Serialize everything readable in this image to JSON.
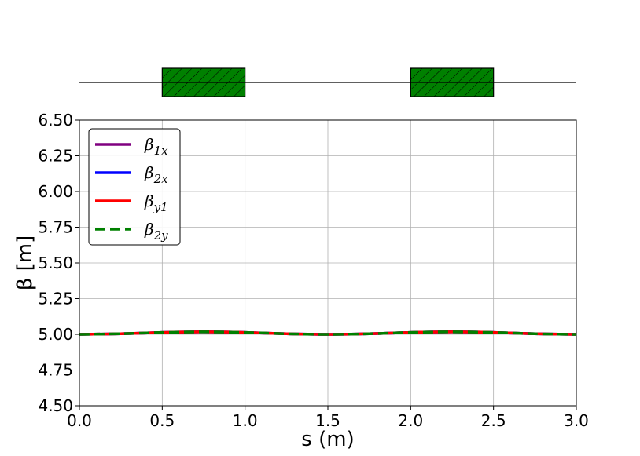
{
  "chart_data": {
    "type": "line",
    "xlabel": "s (m)",
    "ylabel": "β [m]",
    "xlim": [
      0.0,
      3.0
    ],
    "ylim": [
      4.5,
      6.5
    ],
    "x_ticks": [
      "0.0",
      "0.5",
      "1.0",
      "1.5",
      "2.0",
      "2.5",
      "3.0"
    ],
    "y_ticks": [
      "4.50",
      "4.75",
      "5.00",
      "5.25",
      "5.50",
      "5.75",
      "6.00",
      "6.25",
      "6.50"
    ],
    "grid": true,
    "legend_position": "upper-left",
    "x": [
      0.0,
      0.25,
      0.5,
      0.75,
      1.0,
      1.25,
      1.5,
      1.75,
      2.0,
      2.25,
      2.5,
      2.75,
      3.0
    ],
    "series": [
      {
        "name": "β1x",
        "base": "β",
        "sub": "1x",
        "color": "#800080",
        "dash": "solid",
        "values": [
          5.0,
          5.004,
          5.013,
          5.017,
          5.013,
          5.004,
          5.0,
          5.004,
          5.013,
          5.017,
          5.013,
          5.004,
          5.0
        ]
      },
      {
        "name": "β2x",
        "base": "β",
        "sub": "2x",
        "color": "#0000ff",
        "dash": "solid",
        "values": [
          5.0,
          5.004,
          5.013,
          5.017,
          5.013,
          5.004,
          5.0,
          5.004,
          5.013,
          5.017,
          5.013,
          5.004,
          5.0
        ]
      },
      {
        "name": "βy1",
        "base": "β",
        "sub": "y1",
        "color": "#ff0000",
        "dash": "solid",
        "values": [
          5.0,
          5.004,
          5.013,
          5.017,
          5.013,
          5.004,
          5.0,
          5.004,
          5.013,
          5.017,
          5.013,
          5.004,
          5.0
        ]
      },
      {
        "name": "β2y",
        "base": "β",
        "sub": "2y",
        "color": "#008000",
        "dash": "dashed",
        "values": [
          5.0,
          5.004,
          5.013,
          5.017,
          5.013,
          5.004,
          5.0,
          5.004,
          5.013,
          5.017,
          5.013,
          5.004,
          5.0
        ]
      }
    ],
    "lattice": {
      "elements": [
        {
          "type": "quadrupole",
          "start": 0.5,
          "end": 1.0,
          "color": "#008000"
        },
        {
          "type": "quadrupole",
          "start": 2.0,
          "end": 2.5,
          "color": "#008000"
        }
      ]
    }
  }
}
